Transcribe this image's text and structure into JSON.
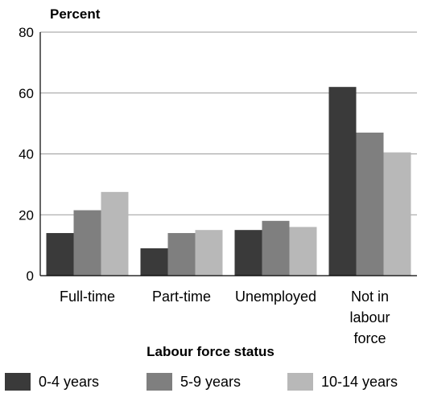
{
  "chart_data": {
    "type": "bar",
    "ylabel": "Percent",
    "xlabel": "Labour force status",
    "categories": [
      "Full-time",
      "Part-time",
      "Unemployed",
      "Not in labour force"
    ],
    "series": [
      {
        "name": "0-4 years",
        "values": [
          14,
          9,
          15,
          62
        ],
        "color": "#3a3a3a"
      },
      {
        "name": "5-9 years",
        "values": [
          21.5,
          14,
          18,
          47
        ],
        "color": "#7f7f7f"
      },
      {
        "name": "10-14 years",
        "values": [
          27.5,
          15,
          16,
          40.5
        ],
        "color": "#b8b8b8"
      }
    ],
    "ylim": [
      0,
      80
    ],
    "yticks": [
      0,
      20,
      40,
      60,
      80
    ],
    "grid": true,
    "legend": "bottom"
  }
}
